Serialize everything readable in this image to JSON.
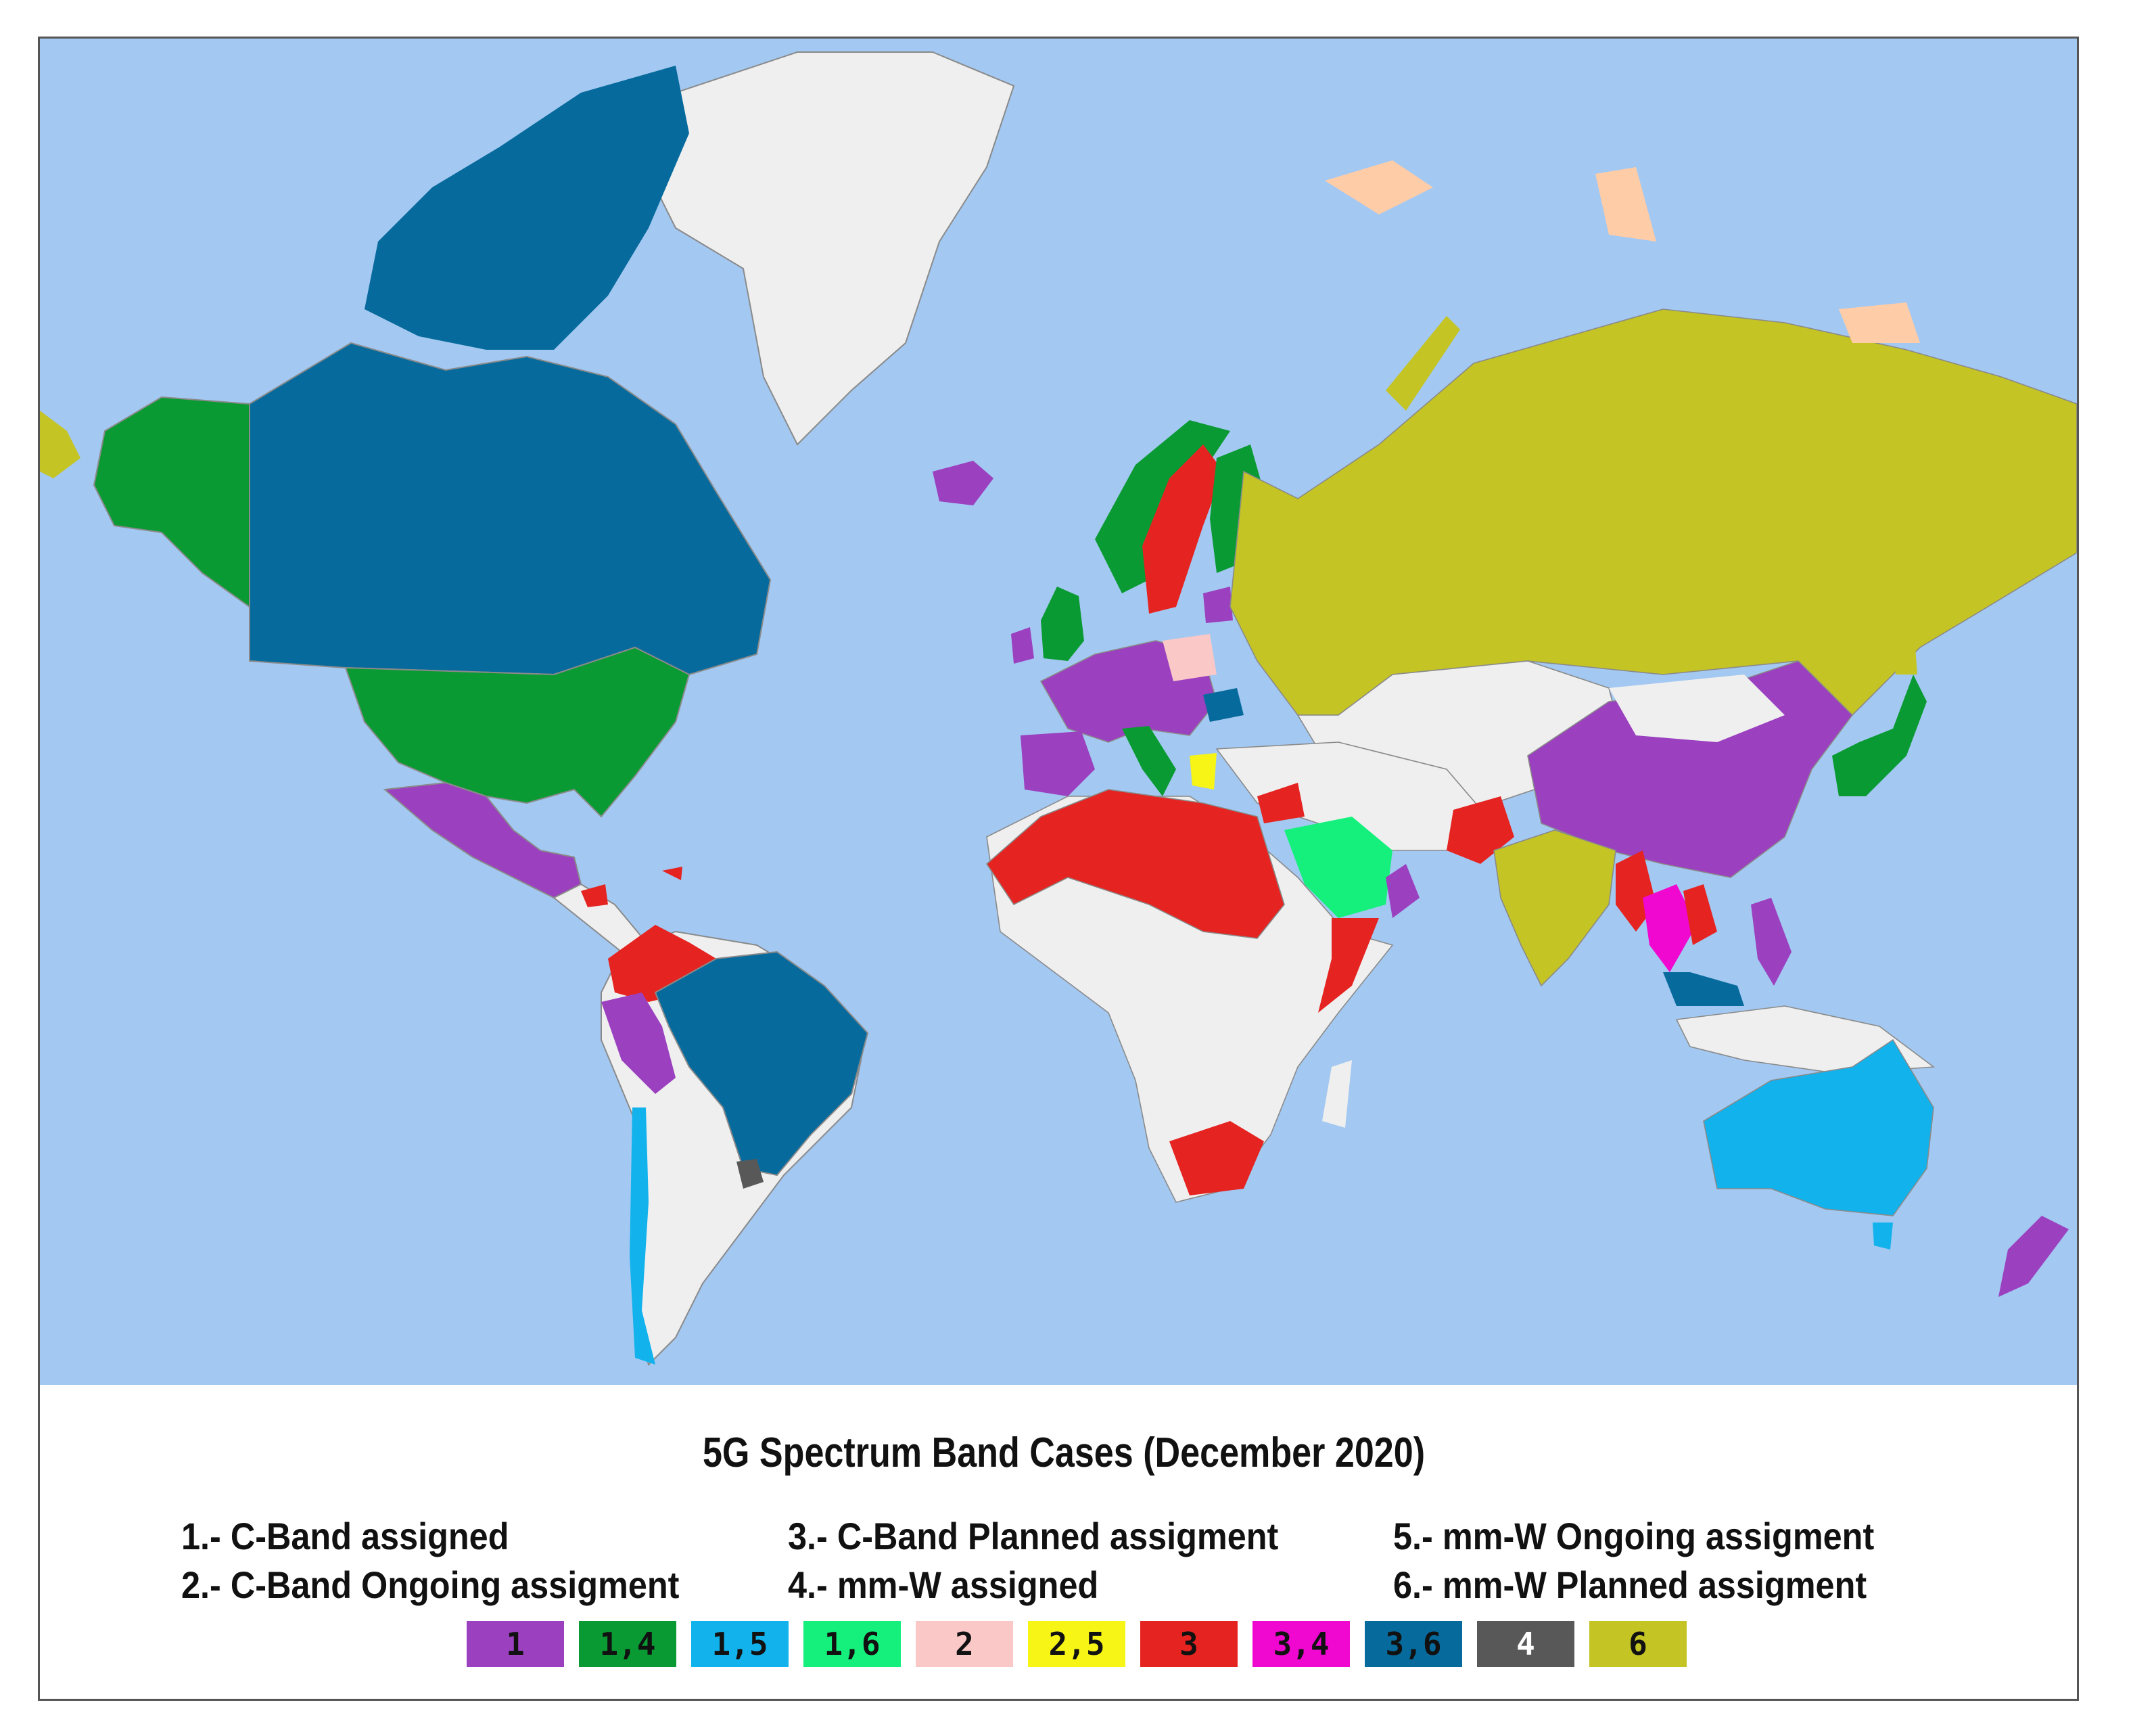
{
  "title": "5G Spectrum Band Cases (December 2020)",
  "definitions": [
    {
      "text": "1.- C-Band assigned"
    },
    {
      "text": "2.- C-Band Ongoing assigment"
    },
    {
      "text": "3.- C-Band Planned assigment"
    },
    {
      "text": "4.- mm-W  assigned"
    },
    {
      "text": "5.- mm-W  Ongoing assigment"
    },
    {
      "text": "6.- mm-W  Planned  assigment"
    }
  ],
  "legend": [
    {
      "label": "1",
      "color": "#9b40bf",
      "text_color": "#111111"
    },
    {
      "label": "1,4",
      "color": "#0a9a33",
      "text_color": "#111111"
    },
    {
      "label": "1,5",
      "color": "#12b2ec",
      "text_color": "#111111"
    },
    {
      "label": "1,6",
      "color": "#15f07c",
      "text_color": "#111111"
    },
    {
      "label": "2",
      "color": "#fbc8c8",
      "text_color": "#111111"
    },
    {
      "label": "2,5",
      "color": "#f6f515",
      "text_color": "#111111"
    },
    {
      "label": "3",
      "color": "#e52320",
      "text_color": "#111111"
    },
    {
      "label": "3,4",
      "color": "#f008d0",
      "text_color": "#111111"
    },
    {
      "label": "3,6",
      "color": "#066a9c",
      "text_color": "#111111"
    },
    {
      "label": "4",
      "color": "#585858",
      "text_color": "#ffffff"
    },
    {
      "label": "6",
      "color": "#c4c424",
      "text_color": "#111111"
    }
  ],
  "colors": {
    "ocean": "#a3c8f1",
    "land_unassigned": "#efefef",
    "border": "#8a8a8a"
  }
}
